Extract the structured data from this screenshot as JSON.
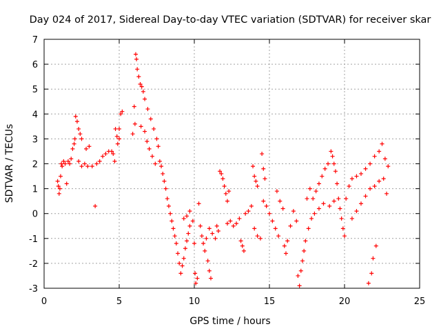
{
  "chart_data": {
    "type": "scatter",
    "title": "Day 024 of 2017, Sidereal Day-to-day VTEC variation (SDTVAR) for receiver skar",
    "xlabel": "GPS time / hours",
    "ylabel": "SDTVAR / TECUs",
    "xlim": [
      0,
      25
    ],
    "ylim": [
      -3,
      7
    ],
    "xticks": [
      "0",
      "5",
      "10",
      "15",
      "20",
      "25"
    ],
    "yticks": [
      "-3",
      "-2",
      "-1",
      "0",
      "1",
      "2",
      "3",
      "4",
      "5",
      "6",
      "7"
    ],
    "grid": true,
    "marker": "plus",
    "color": "#ff0000",
    "series": [
      {
        "name": "SDTVAR",
        "points": [
          [
            0.9,
            1.3
          ],
          [
            0.95,
            1.1
          ],
          [
            1.0,
            0.8
          ],
          [
            1.05,
            1.0
          ],
          [
            1.1,
            1.5
          ],
          [
            1.15,
            2.0
          ],
          [
            1.2,
            1.9
          ],
          [
            1.3,
            2.1
          ],
          [
            1.4,
            2.0
          ],
          [
            1.5,
            1.2
          ],
          [
            1.6,
            2.1
          ],
          [
            1.7,
            2.0
          ],
          [
            1.8,
            2.2
          ],
          [
            1.9,
            2.6
          ],
          [
            2.0,
            2.8
          ],
          [
            2.05,
            3.0
          ],
          [
            2.1,
            3.9
          ],
          [
            2.2,
            3.7
          ],
          [
            2.3,
            3.4
          ],
          [
            2.4,
            3.2
          ],
          [
            2.5,
            3.0
          ],
          [
            2.3,
            2.1
          ],
          [
            2.5,
            1.9
          ],
          [
            2.7,
            2.0
          ],
          [
            2.8,
            2.6
          ],
          [
            3.0,
            2.7
          ],
          [
            2.9,
            1.9
          ],
          [
            3.2,
            1.9
          ],
          [
            3.4,
            0.3
          ],
          [
            3.5,
            2.0
          ],
          [
            3.7,
            2.1
          ],
          [
            3.9,
            2.3
          ],
          [
            4.1,
            2.4
          ],
          [
            4.3,
            2.5
          ],
          [
            4.5,
            2.5
          ],
          [
            4.6,
            2.4
          ],
          [
            4.7,
            2.1
          ],
          [
            4.75,
            3.4
          ],
          [
            4.85,
            3.1
          ],
          [
            4.9,
            2.8
          ],
          [
            5.0,
            3.0
          ],
          [
            5.1,
            4.0
          ],
          [
            5.2,
            4.1
          ],
          [
            5.0,
            3.4
          ],
          [
            5.9,
            3.2
          ],
          [
            6.0,
            4.3
          ],
          [
            6.05,
            3.6
          ],
          [
            6.1,
            6.4
          ],
          [
            6.15,
            6.2
          ],
          [
            6.2,
            5.8
          ],
          [
            6.3,
            5.5
          ],
          [
            6.4,
            5.2
          ],
          [
            6.5,
            5.1
          ],
          [
            6.45,
            3.5
          ],
          [
            6.6,
            4.9
          ],
          [
            6.7,
            4.6
          ],
          [
            6.7,
            3.3
          ],
          [
            6.9,
            4.2
          ],
          [
            6.85,
            2.9
          ],
          [
            7.1,
            3.8
          ],
          [
            7.0,
            2.6
          ],
          [
            7.3,
            3.4
          ],
          [
            7.2,
            2.3
          ],
          [
            7.5,
            3.0
          ],
          [
            7.4,
            2.0
          ],
          [
            7.6,
            2.7
          ],
          [
            7.7,
            2.1
          ],
          [
            7.8,
            1.9
          ],
          [
            7.9,
            1.6
          ],
          [
            8.0,
            1.3
          ],
          [
            8.1,
            1.0
          ],
          [
            8.2,
            0.6
          ],
          [
            8.3,
            0.3
          ],
          [
            8.4,
            0.0
          ],
          [
            8.5,
            -0.3
          ],
          [
            8.6,
            -0.6
          ],
          [
            8.7,
            -0.9
          ],
          [
            8.8,
            -1.2
          ],
          [
            8.9,
            -1.6
          ],
          [
            9.0,
            -2.0
          ],
          [
            9.1,
            -2.4
          ],
          [
            9.2,
            -2.1
          ],
          [
            9.3,
            -1.8
          ],
          [
            9.4,
            -1.4
          ],
          [
            9.5,
            -1.1
          ],
          [
            9.6,
            -0.8
          ],
          [
            9.7,
            -0.5
          ],
          [
            9.3,
            -0.2
          ],
          [
            9.5,
            -0.1
          ],
          [
            9.7,
            0.1
          ],
          [
            9.9,
            -0.3
          ],
          [
            10.0,
            -1.2
          ],
          [
            10.05,
            -2.4
          ],
          [
            10.1,
            -2.8
          ],
          [
            10.2,
            -2.6
          ],
          [
            10.3,
            0.4
          ],
          [
            10.4,
            -0.5
          ],
          [
            10.5,
            -0.9
          ],
          [
            10.6,
            -1.2
          ],
          [
            10.7,
            -1.5
          ],
          [
            10.8,
            -1.0
          ],
          [
            10.9,
            -1.9
          ],
          [
            11.0,
            -2.3
          ],
          [
            11.1,
            -2.6
          ],
          [
            11.0,
            -0.6
          ],
          [
            11.2,
            -0.8
          ],
          [
            11.4,
            -1.0
          ],
          [
            11.5,
            -0.5
          ],
          [
            11.6,
            -0.7
          ],
          [
            11.7,
            1.7
          ],
          [
            11.8,
            1.6
          ],
          [
            11.9,
            1.4
          ],
          [
            12.0,
            1.1
          ],
          [
            12.1,
            0.8
          ],
          [
            12.2,
            0.5
          ],
          [
            12.3,
            0.9
          ],
          [
            12.2,
            -0.4
          ],
          [
            12.4,
            -0.3
          ],
          [
            12.6,
            -0.5
          ],
          [
            12.8,
            -0.4
          ],
          [
            13.0,
            -0.2
          ],
          [
            13.1,
            -1.1
          ],
          [
            13.2,
            -1.3
          ],
          [
            13.3,
            -1.5
          ],
          [
            13.4,
            0.0
          ],
          [
            13.6,
            0.1
          ],
          [
            13.8,
            0.3
          ],
          [
            13.9,
            1.9
          ],
          [
            14.0,
            1.5
          ],
          [
            14.1,
            1.3
          ],
          [
            14.2,
            1.1
          ],
          [
            14.0,
            -0.6
          ],
          [
            14.2,
            -0.9
          ],
          [
            14.4,
            -1.0
          ],
          [
            14.5,
            2.4
          ],
          [
            14.6,
            1.8
          ],
          [
            14.7,
            1.4
          ],
          [
            14.6,
            0.5
          ],
          [
            14.8,
            0.3
          ],
          [
            15.0,
            0.0
          ],
          [
            15.2,
            -0.3
          ],
          [
            15.4,
            -0.6
          ],
          [
            15.6,
            -0.9
          ],
          [
            15.5,
            0.9
          ],
          [
            15.7,
            0.5
          ],
          [
            15.9,
            0.2
          ],
          [
            16.0,
            -1.3
          ],
          [
            16.1,
            -1.6
          ],
          [
            16.2,
            -1.1
          ],
          [
            16.4,
            -0.5
          ],
          [
            16.6,
            0.1
          ],
          [
            16.8,
            -0.3
          ],
          [
            16.9,
            -2.5
          ],
          [
            17.0,
            -2.9
          ],
          [
            17.1,
            -2.3
          ],
          [
            17.2,
            -1.9
          ],
          [
            17.3,
            -1.5
          ],
          [
            17.4,
            -1.1
          ],
          [
            17.6,
            -0.6
          ],
          [
            17.8,
            -0.2
          ],
          [
            17.5,
            0.6
          ],
          [
            17.7,
            1.0
          ],
          [
            17.9,
            0.6
          ],
          [
            18.1,
            0.9
          ],
          [
            18.3,
            1.2
          ],
          [
            18.5,
            1.5
          ],
          [
            18.7,
            1.8
          ],
          [
            18.9,
            2.0
          ],
          [
            19.1,
            2.5
          ],
          [
            19.2,
            2.3
          ],
          [
            19.3,
            2.0
          ],
          [
            19.4,
            1.7
          ],
          [
            19.5,
            1.2
          ],
          [
            19.6,
            0.6
          ],
          [
            19.7,
            0.2
          ],
          [
            19.8,
            -0.2
          ],
          [
            19.9,
            -0.6
          ],
          [
            20.0,
            -0.9
          ],
          [
            18.0,
            0.0
          ],
          [
            18.3,
            0.2
          ],
          [
            18.6,
            0.4
          ],
          [
            19.0,
            0.3
          ],
          [
            19.3,
            0.5
          ],
          [
            20.1,
            0.6
          ],
          [
            20.3,
            1.1
          ],
          [
            20.5,
            1.4
          ],
          [
            20.8,
            1.5
          ],
          [
            21.1,
            1.6
          ],
          [
            21.4,
            1.8
          ],
          [
            21.7,
            2.0
          ],
          [
            22.0,
            2.3
          ],
          [
            22.3,
            2.5
          ],
          [
            22.5,
            2.8
          ],
          [
            22.7,
            2.2
          ],
          [
            22.9,
            1.9
          ],
          [
            20.5,
            -0.2
          ],
          [
            20.8,
            0.1
          ],
          [
            21.1,
            0.4
          ],
          [
            21.4,
            0.7
          ],
          [
            21.7,
            1.0
          ],
          [
            22.0,
            1.1
          ],
          [
            22.3,
            1.3
          ],
          [
            22.6,
            1.4
          ],
          [
            22.8,
            0.8
          ],
          [
            21.6,
            -2.8
          ],
          [
            21.8,
            -2.4
          ],
          [
            21.9,
            -1.8
          ],
          [
            22.1,
            -1.3
          ]
        ]
      }
    ]
  }
}
